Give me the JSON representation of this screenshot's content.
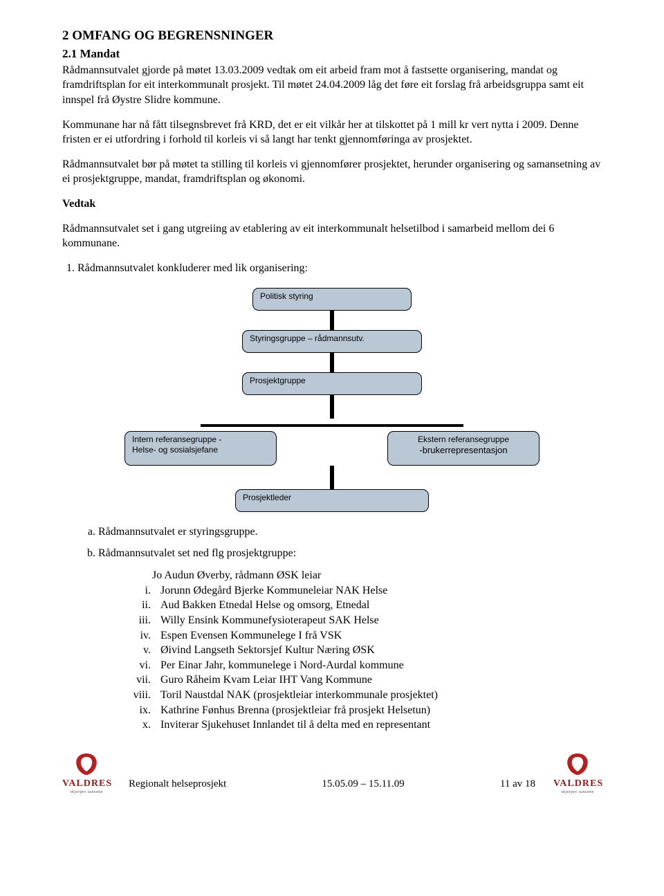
{
  "section": {
    "num_title": "2    OMFANG OG BEGRENSNINGER",
    "sub_num_title": "2.1    Mandat"
  },
  "paras": {
    "p1": "Rådmannsutvalet gjorde på møtet 13.03.2009 vedtak om eit arbeid fram mot å fastsette organisering, mandat og framdriftsplan for eit interkommunalt prosjekt. Til møtet 24.04.2009 låg det føre eit forslag frå arbeidsgruppa samt eit innspel frå Øystre Slidre kommune.",
    "p2": "Kommunane har nå fått tilsegnsbrevet frå KRD, det er eit vilkår her at tilskottet på 1 mill kr vert nytta i 2009. Denne fristen er ei utfordring i forhold til korleis vi så langt har tenkt gjennomføringa av prosjektet.",
    "p3": "Rådmannsutvalet bør på møtet ta stilling til korleis vi gjennomfører prosjektet, herunder organisering og samansetning av ei prosjektgruppe, mandat, framdriftsplan og økonomi.",
    "vedtak": "Vedtak",
    "p4": "Rådmannsutvalet set i gang utgreiing av etablering av eit interkommunalt helsetilbod i samarbeid mellom dei 6 kommunane.",
    "li1": "Rådmannsutvalet konkluderer med lik organisering:"
  },
  "orgchart": {
    "box_bg": "#bac7d5",
    "box_border": "#000000",
    "line_color": "#000000",
    "font_family": "Arial",
    "label_fontsize": 12,
    "nodes": {
      "top": "Politisk styring",
      "styringsgruppe": "Styringsgruppe – rådmannsutv.",
      "prosjektgruppe": "Prosjektgruppe",
      "intern_l1": "Intern referansegruppe -",
      "intern_l2": "Helse- og sosialsjefane",
      "ekstern_l1": "Ekstern referansegruppe",
      "ekstern_l2": "-brukerrepresentasjon",
      "leder": "Prosjektleder"
    }
  },
  "alpha": {
    "a": "Rådmannsutvalet er styringsgruppe.",
    "b": "Rådmannsutvalet set ned flg prosjektgruppe:"
  },
  "roman": {
    "lead": "Jo Audun Øverby, rådmann ØSK leiar",
    "items": [
      {
        "n": "i.",
        "t": "Jorunn Ødegård Bjerke Kommuneleiar NAK Helse"
      },
      {
        "n": "ii.",
        "t": "Aud Bakken Etnedal   Helse og omsorg, Etnedal"
      },
      {
        "n": "iii.",
        "t": "Willy Ensink Kommunefysioterapeut SAK Helse"
      },
      {
        "n": "iv.",
        "t": "Espen Evensen Kommunelege I frå VSK"
      },
      {
        "n": "v.",
        "t": "Øivind Langseth Sektorsjef Kultur Næring ØSK"
      },
      {
        "n": "vi.",
        "t": "Per Einar Jahr, kommunelege i Nord-Aurdal kommune"
      },
      {
        "n": "vii.",
        "t": "Guro Råheim Kvam Leiar IHT Vang Kommune"
      },
      {
        "n": "viii.",
        "t": "Toril Naustdal NAK (prosjektleiar interkommunale prosjektet)"
      },
      {
        "n": "ix.",
        "t": "Kathrine Fønhus Brenna (prosjektleiar frå prosjekt Helsetun)"
      },
      {
        "n": "x.",
        "t": "Inviterar Sjukehuset Innlandet til å delta med en representant"
      }
    ]
  },
  "footer": {
    "left": "Regionalt helseprosjekt",
    "center": "15.05.09 – 15.11.09",
    "right": "11 av 18",
    "brand": "VALDRES",
    "tagline": "skjerper sansene",
    "logo_color": "#b32222"
  }
}
